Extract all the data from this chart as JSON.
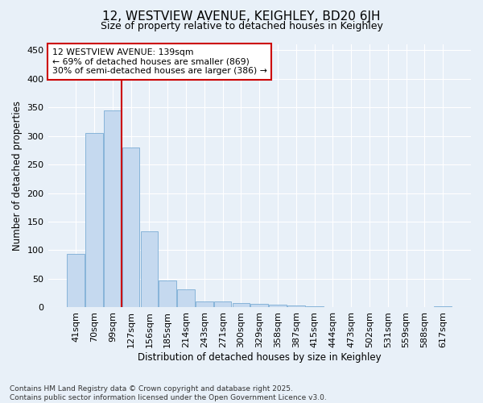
{
  "title": "12, WESTVIEW AVENUE, KEIGHLEY, BD20 6JH",
  "subtitle": "Size of property relative to detached houses in Keighley",
  "xlabel": "Distribution of detached houses by size in Keighley",
  "ylabel": "Number of detached properties",
  "categories": [
    "41sqm",
    "70sqm",
    "99sqm",
    "127sqm",
    "156sqm",
    "185sqm",
    "214sqm",
    "243sqm",
    "271sqm",
    "300sqm",
    "329sqm",
    "358sqm",
    "387sqm",
    "415sqm",
    "444sqm",
    "473sqm",
    "502sqm",
    "531sqm",
    "559sqm",
    "588sqm",
    "617sqm"
  ],
  "values": [
    93,
    305,
    345,
    280,
    133,
    47,
    31,
    10,
    11,
    8,
    6,
    5,
    3,
    2,
    1,
    0,
    0,
    0,
    1,
    0,
    2
  ],
  "bar_color": "#c5d9ef",
  "bar_edge_color": "#7aadd4",
  "vline_x": 2.5,
  "vline_color": "#cc0000",
  "annotation_text": "12 WESTVIEW AVENUE: 139sqm\n← 69% of detached houses are smaller (869)\n30% of semi-detached houses are larger (386) →",
  "annotation_box_facecolor": "#ffffff",
  "annotation_box_edgecolor": "#cc0000",
  "background_color": "#e8f0f8",
  "plot_bg_color": "#e8f0f8",
  "grid_color": "#ffffff",
  "footer": "Contains HM Land Registry data © Crown copyright and database right 2025.\nContains public sector information licensed under the Open Government Licence v3.0.",
  "ylim": [
    0,
    460
  ],
  "yticks": [
    0,
    50,
    100,
    150,
    200,
    250,
    300,
    350,
    400,
    450
  ]
}
